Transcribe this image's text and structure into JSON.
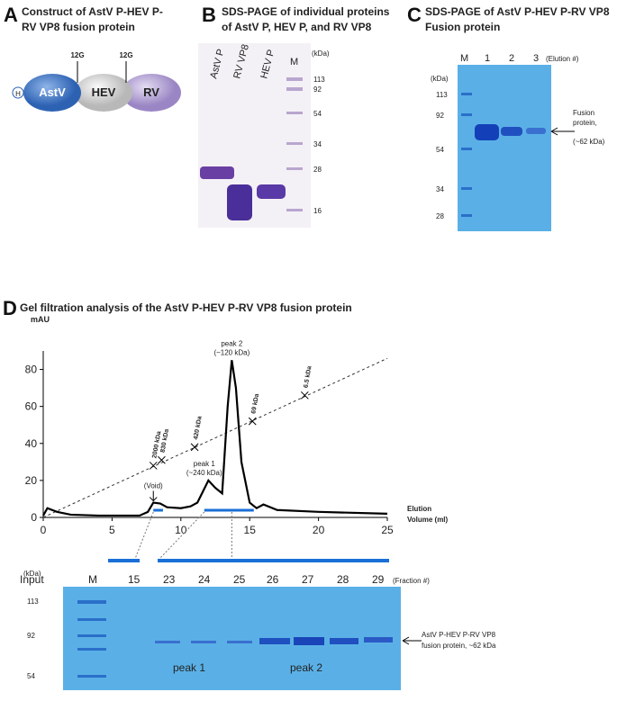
{
  "panel_a": {
    "letter": "A",
    "title": [
      "Construct of AstV P-HEV P-",
      "RV VP8 fusion protein"
    ],
    "domains": [
      "H",
      "AstV",
      "HEV",
      "RV"
    ],
    "linkers": [
      "12G",
      "12G"
    ]
  },
  "panel_b": {
    "letter": "B",
    "title": [
      "SDS-PAGE of individual proteins",
      "of AstV P, HEV P, and RV VP8"
    ],
    "lanes": [
      "AstV P",
      "RV VP8",
      "HEV P",
      "M"
    ],
    "unit": "(kDa)",
    "markers": [
      "113",
      "92",
      "54",
      "34",
      "28",
      "16"
    ]
  },
  "panel_c": {
    "letter": "C",
    "title": [
      "SDS-PAGE of AstV P-HEV P-RV VP8",
      "Fusion protein"
    ],
    "lanes": [
      "M",
      "1",
      "2",
      "3"
    ],
    "lane_note": "(Elution #)",
    "unit": "(kDa)",
    "markers": [
      "113",
      "92",
      "54",
      "34",
      "28"
    ],
    "band_label": [
      "Fusion",
      "protein,",
      "(~62 kDa)"
    ]
  },
  "panel_d": {
    "letter": "D",
    "title": "Gel filtration analysis of the AstV P-HEV P-RV VP8 fusion protein",
    "gel": {
      "lanes": [
        "Input",
        "M",
        "15",
        "23",
        "24",
        "25",
        "26",
        "27",
        "28",
        "29"
      ],
      "lane_note": "(Fraction #)",
      "unit": "(kDa)",
      "markers": [
        "113",
        "92",
        "54"
      ],
      "band_label": [
        "AstV P-HEV P-RV VP8",
        "fusion protein, ~62 kDa"
      ],
      "groups": [
        "peak 1",
        "peak 2"
      ]
    }
  },
  "chart_data": {
    "type": "line",
    "ylabel": "mAU",
    "xlabel": [
      "Elution",
      "Volume (ml)"
    ],
    "color": "#000000",
    "x": [
      0,
      0.3,
      1,
      2,
      4,
      7,
      7.6,
      8,
      8.5,
      9,
      10,
      10.7,
      11.2,
      11.6,
      12,
      12.5,
      13,
      13.4,
      13.7,
      14,
      14.4,
      15,
      15.5,
      16,
      17,
      20,
      25
    ],
    "values": [
      1,
      5,
      3,
      1.5,
      1,
      1,
      3,
      8,
      7.5,
      5.5,
      5,
      6,
      8,
      14,
      20,
      16,
      13,
      60,
      85,
      70,
      30,
      8,
      5,
      7,
      4,
      3,
      2
    ],
    "xlim": [
      0,
      25
    ],
    "ylim": [
      0,
      90
    ],
    "xticks": [
      0,
      5,
      10,
      15,
      20,
      25
    ],
    "yticks": [
      0,
      20,
      40,
      60,
      80
    ],
    "calibration": {
      "x": [
        0,
        25
      ],
      "values": [
        0,
        86
      ]
    },
    "standards": [
      {
        "label": "2000 kDa",
        "x": 8,
        "y": 28
      },
      {
        "label": "830 kDa",
        "x": 8.6,
        "y": 31
      },
      {
        "label": "420 kDa",
        "x": 11,
        "y": 38
      },
      {
        "label": "69 kDa",
        "x": 15.2,
        "y": 52
      },
      {
        "label": "6.5 kDa",
        "x": 19,
        "y": 66
      }
    ],
    "annotations": [
      {
        "text": [
          "peak 2",
          "(~120 kDa)"
        ],
        "x": 13.7,
        "y": 85
      },
      {
        "text": [
          "peak 1",
          "(~240 kDa)"
        ],
        "x": 11.7,
        "y": 20
      },
      {
        "text": [
          "(Void)"
        ],
        "x": 8,
        "y": 8
      }
    ],
    "fractions": [
      [
        8,
        8.7
      ],
      [
        11.7,
        15.3
      ]
    ]
  }
}
